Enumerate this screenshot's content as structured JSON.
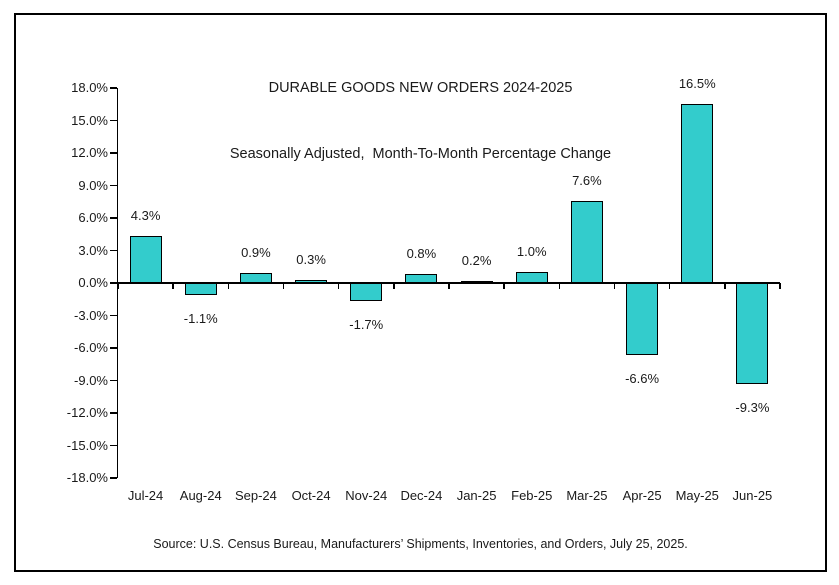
{
  "chart_data": {
    "type": "bar",
    "title": "DURABLE GOODS NEW ORDERS 2024-2025",
    "subtitle": "Seasonally Adjusted,  Month-To-Month Percentage Change",
    "categories": [
      "Jul-24",
      "Aug-24",
      "Sep-24",
      "Oct-24",
      "Nov-24",
      "Dec-24",
      "Jan-25",
      "Feb-25",
      "Mar-25",
      "Apr-25",
      "May-25",
      "Jun-25"
    ],
    "values": [
      4.3,
      -1.1,
      0.9,
      0.3,
      -1.7,
      0.8,
      0.2,
      1.0,
      7.6,
      -6.6,
      16.5,
      -9.3
    ],
    "value_labels": [
      "4.3%",
      "-1.1%",
      "0.9%",
      "0.3%",
      "-1.7%",
      "0.8%",
      "0.2%",
      "1.0%",
      "7.6%",
      "-6.6%",
      "16.5%",
      "-9.3%"
    ],
    "y_tick_labels": [
      "18.0%",
      "15.0%",
      "12.0%",
      "9.0%",
      "6.0%",
      "3.0%",
      "0.0%",
      "-3.0%",
      "-6.0%",
      "-9.0%",
      "-12.0%",
      "-15.0%",
      "-18.0%"
    ],
    "ylim": [
      -18,
      18
    ],
    "y_step": 3,
    "grid": false,
    "legend": "none",
    "bar_color": "#33CCCC",
    "bar_border_color": "#000000",
    "text_color": "#1a1a1a"
  },
  "source_note": "Source: U.S. Census Bureau, Manufacturers’ Shipments, Inventories, and Orders, July 25, 2025."
}
